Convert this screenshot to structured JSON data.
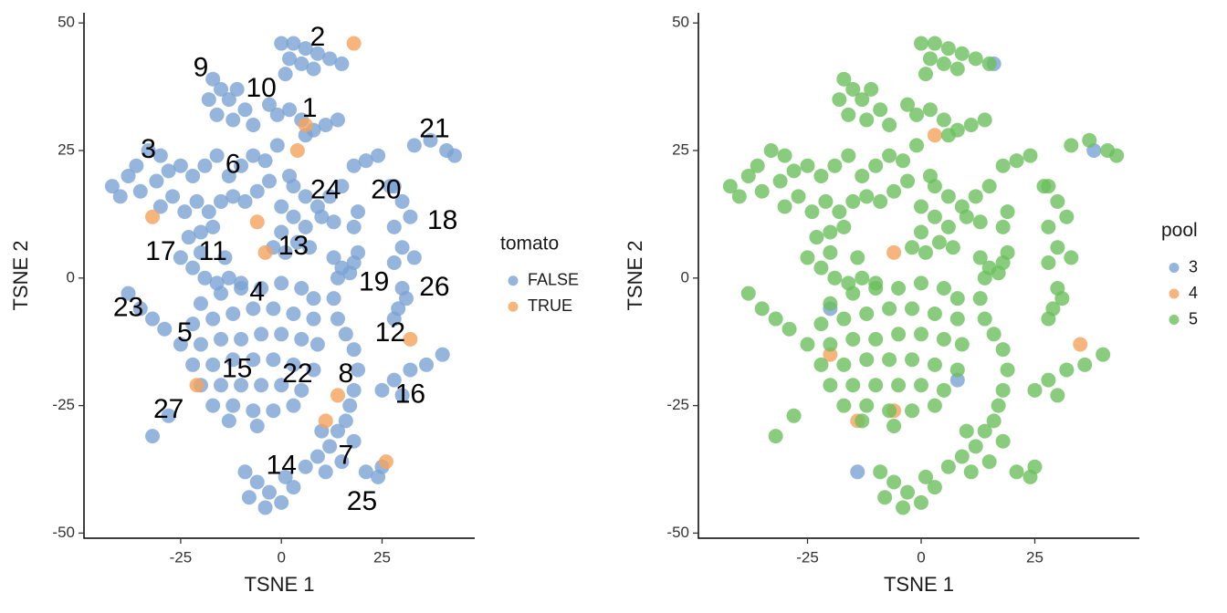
{
  "chart_data": [
    {
      "type": "scatter",
      "xlabel": "TSNE 1",
      "ylabel": "TSNE 2",
      "xlim": [
        -49,
        48
      ],
      "ylim": [
        -51,
        52
      ],
      "xticks": [
        -25,
        0,
        25
      ],
      "yticks": [
        -50,
        -25,
        0,
        25,
        50
      ],
      "legend": "right",
      "legend_title": "tomato",
      "series": [
        {
          "name": "FALSE",
          "color": "#7ba2d4",
          "x": [
            0,
            3,
            6,
            9,
            12,
            15,
            2,
            5,
            8,
            1,
            -17,
            -15,
            -13,
            -11,
            -18,
            -16,
            -12,
            -9,
            -7,
            -3,
            -1,
            2,
            5,
            8,
            11,
            14,
            6,
            37,
            41,
            43,
            33,
            -42,
            -40,
            -38,
            -36,
            -33,
            -30,
            -35,
            -31,
            -28,
            -25,
            -22,
            -19,
            -16,
            -13,
            -10,
            -7,
            -4,
            -1,
            -3,
            -6,
            -9,
            -12,
            -15,
            -18,
            -21,
            -24,
            -27,
            -30,
            -20,
            -17,
            -23,
            3,
            6,
            9,
            12,
            15,
            0,
            3,
            6,
            10,
            13,
            2,
            0,
            -25,
            -22,
            -19,
            -16,
            -13,
            -10,
            -20,
            -14,
            -2,
            1,
            4,
            7,
            18,
            21,
            24,
            19,
            18,
            28,
            30,
            32,
            28,
            30,
            33,
            28,
            27,
            13,
            15,
            18,
            19,
            14,
            17,
            30,
            29,
            31,
            28,
            -20,
            -15,
            -10,
            -5,
            0,
            5,
            8,
            -22,
            -17,
            -12,
            -7,
            -2,
            3,
            8,
            -25,
            -20,
            -15,
            -10,
            -5,
            0,
            5,
            9,
            -22,
            -17,
            -12,
            -7,
            -2,
            3,
            8,
            -20,
            -15,
            -10,
            -5,
            0,
            5,
            -17,
            -12,
            -7,
            -2,
            3,
            -13,
            -6,
            -38,
            -35,
            -32,
            -29,
            -32,
            -28,
            13,
            14,
            16,
            18,
            19,
            18,
            17,
            16,
            25,
            28,
            32,
            36,
            40,
            30,
            14,
            12,
            9,
            6,
            11,
            15,
            18,
            10,
            -9,
            -6,
            -3,
            0,
            -8,
            -4,
            1,
            3,
            21,
            24,
            25
          ],
          "values": [
            46,
            46,
            45,
            44,
            43,
            42,
            43,
            42,
            41,
            40,
            39,
            37,
            35,
            37,
            35,
            32,
            31,
            33,
            30,
            34,
            32,
            33,
            31,
            29,
            30,
            31,
            28,
            27,
            25,
            24,
            26,
            18,
            16,
            20,
            22,
            25,
            24,
            17,
            19,
            21,
            22,
            20,
            22,
            24,
            20,
            22,
            24,
            23,
            26,
            19,
            17,
            15,
            16,
            15,
            13,
            15,
            13,
            16,
            14,
            9,
            10,
            8,
            18,
            16,
            14,
            16,
            18,
            14,
            12,
            10,
            12,
            11,
            20,
            9,
            4,
            2,
            0,
            -1,
            0,
            -1,
            5,
            4,
            6,
            5,
            7,
            6,
            22,
            23,
            24,
            13,
            10,
            18,
            15,
            12,
            10,
            6,
            4,
            3,
            18,
            4,
            2,
            3,
            5,
            0,
            1,
            -2,
            -6,
            -4,
            -8,
            -5,
            -3,
            -2,
            -2,
            -1,
            -2,
            -4,
            -9,
            -8,
            -7,
            -6,
            -6,
            -7,
            -8,
            -13,
            -13,
            -12,
            -12,
            -11,
            -11,
            -12,
            -13,
            -17,
            -17,
            -16,
            -16,
            -16,
            -17,
            -18,
            -21,
            -21,
            -21,
            -21,
            -21,
            -22,
            -25,
            -25,
            -26,
            -26,
            -25,
            -28,
            -29,
            -3,
            -6,
            -8,
            -10,
            -31,
            -27,
            -4,
            -8,
            -11,
            -14,
            -18,
            -22,
            -25,
            -28,
            -22,
            -20,
            -18,
            -17,
            -15,
            -23,
            -30,
            -33,
            -35,
            -37,
            -38,
            -36,
            -32,
            -30,
            -38,
            -40,
            -42,
            -44,
            -43,
            -45,
            -39,
            -41,
            -38,
            -39,
            -37
          ]
        },
        {
          "name": "TRUE",
          "color": "#f5a25e",
          "x": [
            6,
            4,
            -6,
            14,
            -4,
            26,
            32,
            -32,
            18,
            -21,
            11
          ],
          "values": [
            30,
            25,
            11,
            -23,
            5,
            -36,
            -12,
            12,
            46,
            -21,
            -28
          ]
        }
      ],
      "annotations": [
        {
          "text": "2",
          "x": 9,
          "y": 47
        },
        {
          "text": "9",
          "x": -20,
          "y": 41
        },
        {
          "text": "10",
          "x": -5,
          "y": 37
        },
        {
          "text": "1",
          "x": 7,
          "y": 33
        },
        {
          "text": "21",
          "x": 38,
          "y": 29
        },
        {
          "text": "3",
          "x": -33,
          "y": 25
        },
        {
          "text": "6",
          "x": -12,
          "y": 22
        },
        {
          "text": "24",
          "x": 11,
          "y": 17
        },
        {
          "text": "20",
          "x": 26,
          "y": 17
        },
        {
          "text": "18",
          "x": 40,
          "y": 11
        },
        {
          "text": "17",
          "x": -30,
          "y": 5
        },
        {
          "text": "11",
          "x": -17,
          "y": 5
        },
        {
          "text": "13",
          "x": 3,
          "y": 6
        },
        {
          "text": "19",
          "x": 23,
          "y": -1
        },
        {
          "text": "26",
          "x": 38,
          "y": -2
        },
        {
          "text": "4",
          "x": -6,
          "y": -3
        },
        {
          "text": "23",
          "x": -38,
          "y": -6
        },
        {
          "text": "5",
          "x": -24,
          "y": -11
        },
        {
          "text": "12",
          "x": 27,
          "y": -11
        },
        {
          "text": "15",
          "x": -11,
          "y": -18
        },
        {
          "text": "22",
          "x": 4,
          "y": -19
        },
        {
          "text": "8",
          "x": 16,
          "y": -19
        },
        {
          "text": "16",
          "x": 32,
          "y": -23
        },
        {
          "text": "27",
          "x": -28,
          "y": -26
        },
        {
          "text": "7",
          "x": 16,
          "y": -35
        },
        {
          "text": "14",
          "x": 0,
          "y": -37
        },
        {
          "text": "25",
          "x": 20,
          "y": -44
        }
      ]
    },
    {
      "type": "scatter",
      "xlabel": "TSNE 1",
      "ylabel": "TSNE 2",
      "xlim": [
        -49,
        48
      ],
      "ylim": [
        -51,
        52
      ],
      "xticks": [
        -25,
        0,
        25
      ],
      "yticks": [
        -50,
        -25,
        0,
        25,
        50
      ],
      "legend": "right",
      "legend_title": "pool",
      "series": [
        {
          "name": "3",
          "color": "#7ba2d4",
          "x": [
            38,
            -20,
            -14,
            16,
            8
          ],
          "values": [
            25,
            -6,
            -38,
            42,
            -20
          ]
        },
        {
          "name": "4",
          "color": "#f5a25e",
          "x": [
            -14,
            -6,
            -6,
            35,
            3,
            -20
          ],
          "values": [
            -28,
            5,
            -26,
            -13,
            28,
            -15
          ]
        },
        {
          "name": "5",
          "color": "#6cbf5c",
          "x": [
            0,
            3,
            6,
            9,
            12,
            15,
            2,
            5,
            8,
            1,
            -17,
            -15,
            -13,
            -11,
            -18,
            -16,
            -12,
            -9,
            -7,
            -3,
            -1,
            2,
            5,
            8,
            11,
            14,
            6,
            37,
            41,
            43,
            33,
            -42,
            -40,
            -38,
            -36,
            -33,
            -30,
            -35,
            -31,
            -28,
            -25,
            -22,
            -19,
            -16,
            -13,
            -10,
            -7,
            -4,
            -1,
            -3,
            -6,
            -9,
            -12,
            -15,
            -18,
            -21,
            -24,
            -27,
            -30,
            -20,
            -17,
            -23,
            3,
            6,
            9,
            12,
            15,
            0,
            3,
            6,
            10,
            13,
            2,
            0,
            -25,
            -22,
            -19,
            -16,
            -13,
            -10,
            -20,
            -14,
            -2,
            1,
            4,
            7,
            18,
            21,
            24,
            19,
            18,
            28,
            30,
            32,
            28,
            30,
            33,
            28,
            27,
            13,
            15,
            18,
            19,
            14,
            17,
            30,
            29,
            31,
            28,
            -20,
            -15,
            -10,
            -5,
            0,
            5,
            8,
            -22,
            -17,
            -12,
            -7,
            -2,
            3,
            8,
            -25,
            -20,
            -15,
            -10,
            -5,
            0,
            5,
            9,
            -22,
            -17,
            -12,
            -7,
            -2,
            3,
            8,
            -20,
            -15,
            -10,
            -5,
            0,
            5,
            -17,
            -12,
            -7,
            -2,
            3,
            -13,
            -6,
            -38,
            -35,
            -32,
            -29,
            -32,
            -28,
            13,
            14,
            16,
            18,
            19,
            18,
            17,
            16,
            25,
            28,
            32,
            36,
            40,
            30,
            14,
            12,
            9,
            6,
            11,
            15,
            18,
            10,
            -9,
            -6,
            -3,
            0,
            -8,
            -4,
            1,
            3,
            21,
            24,
            25
          ],
          "values": [
            46,
            46,
            45,
            44,
            43,
            42,
            43,
            42,
            41,
            40,
            39,
            37,
            35,
            37,
            35,
            32,
            31,
            33,
            30,
            34,
            32,
            33,
            31,
            29,
            30,
            31,
            28,
            27,
            25,
            24,
            26,
            18,
            16,
            20,
            22,
            25,
            24,
            17,
            19,
            21,
            22,
            20,
            22,
            24,
            20,
            22,
            24,
            23,
            26,
            19,
            17,
            15,
            16,
            15,
            13,
            15,
            13,
            16,
            14,
            9,
            10,
            8,
            18,
            16,
            14,
            16,
            18,
            14,
            12,
            10,
            12,
            11,
            20,
            9,
            4,
            2,
            0,
            -1,
            0,
            -1,
            5,
            4,
            6,
            5,
            7,
            6,
            22,
            23,
            24,
            13,
            10,
            18,
            15,
            12,
            10,
            6,
            4,
            3,
            18,
            4,
            2,
            3,
            5,
            0,
            1,
            -2,
            -6,
            -4,
            -8,
            -5,
            -3,
            -2,
            -2,
            -1,
            -2,
            -4,
            -9,
            -8,
            -7,
            -6,
            -6,
            -7,
            -8,
            -13,
            -13,
            -12,
            -12,
            -11,
            -11,
            -12,
            -13,
            -17,
            -17,
            -16,
            -16,
            -16,
            -17,
            -18,
            -21,
            -21,
            -21,
            -21,
            -21,
            -22,
            -25,
            -25,
            -26,
            -26,
            -25,
            -28,
            -29,
            -3,
            -6,
            -8,
            -10,
            -31,
            -27,
            -4,
            -8,
            -11,
            -14,
            -18,
            -22,
            -25,
            -28,
            -22,
            -20,
            -18,
            -17,
            -15,
            -23,
            -30,
            -33,
            -35,
            -37,
            -38,
            -36,
            -32,
            -30,
            -38,
            -40,
            -42,
            -44,
            -43,
            -45,
            -39,
            -41,
            -38,
            -39,
            -37
          ]
        }
      ]
    }
  ]
}
